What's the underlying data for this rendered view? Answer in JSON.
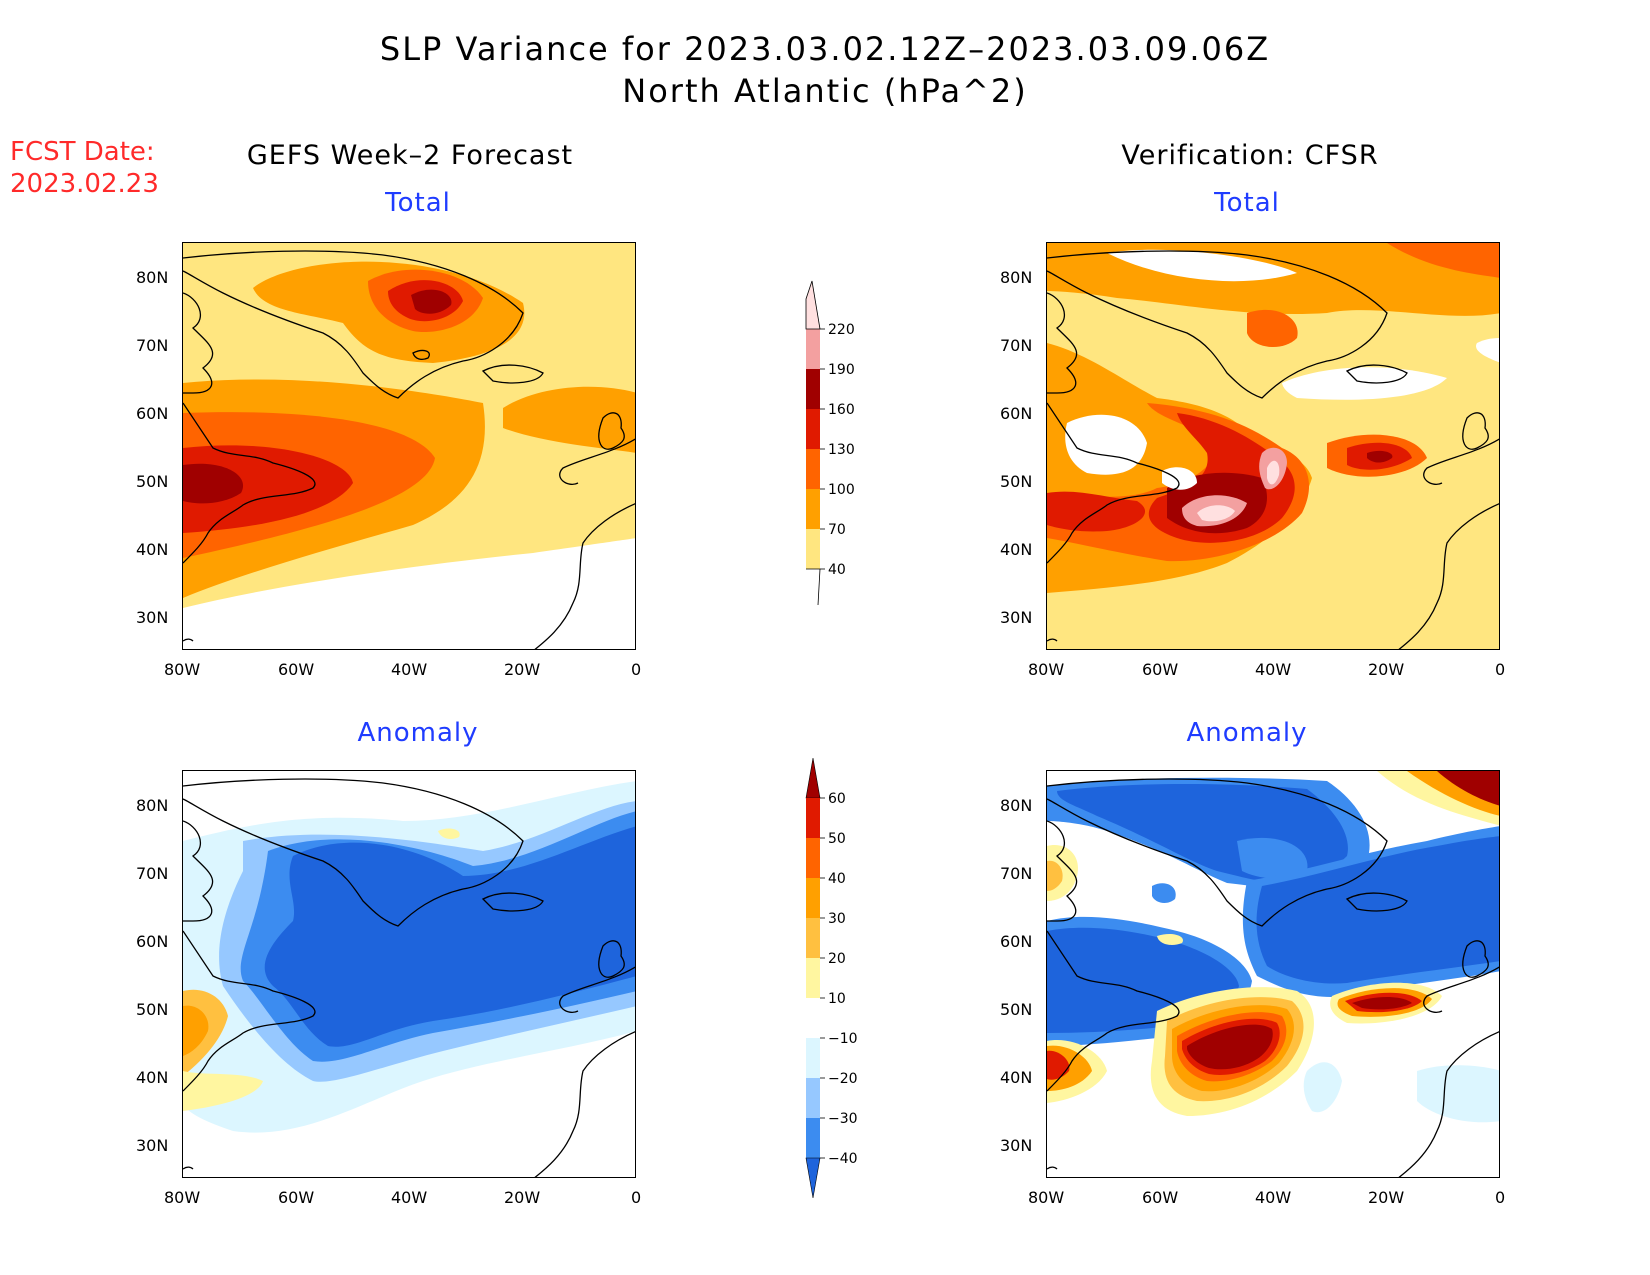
{
  "title": {
    "line1": "SLP Variance for 2023.03.02.12Z–2023.03.09.06Z",
    "line2": "North Atlantic (hPa^2)"
  },
  "fcst": {
    "line1": "FCST Date:",
    "line2": "2023.02.23"
  },
  "columns": {
    "left": "GEFS Week–2 Forecast",
    "right": "Verification: CFSR"
  },
  "subtitles": {
    "total": "Total",
    "anomaly": "Anomaly"
  },
  "axes": {
    "lat_labels": [
      "80N",
      "70N",
      "60N",
      "50N",
      "40N",
      "30N"
    ],
    "lon_labels": [
      "80W",
      "60W",
      "40W",
      "20W",
      "0"
    ]
  },
  "colorbars": {
    "total": {
      "levels": [
        "40",
        "70",
        "100",
        "130",
        "160",
        "190",
        "220"
      ],
      "colors": [
        "#ffe680",
        "#ffa000",
        "#ff6400",
        "#e01a00",
        "#a00000",
        "#f3a0a0",
        "#ffe0e0"
      ]
    },
    "anomaly": {
      "levels": [
        "60",
        "50",
        "40",
        "30",
        "20",
        "10",
        "−10",
        "−20",
        "−30",
        "−40"
      ],
      "colors": [
        "#a00000",
        "#e01a00",
        "#ff6400",
        "#ffa000",
        "#ffc040",
        "#fff6a0",
        "#ffffff",
        "#dcf6ff",
        "#96c8ff",
        "#3c8cf0",
        "#1e64dc"
      ]
    }
  },
  "palette": {
    "total": {
      "low": "#ffffff",
      "t40": "#ffe680",
      "t70": "#ffa000",
      "t100": "#ff6400",
      "t130": "#e01a00",
      "t160": "#a00000",
      "t190": "#f3a0a0",
      "t220": "#ffe0e0"
    },
    "anomaly": {
      "a60": "#a00000",
      "a50": "#e01a00",
      "a40": "#ff6400",
      "a30": "#ffa000",
      "a20": "#ffc040",
      "a10": "#fff6a0",
      "zero": "#ffffff",
      "m10": "#dcf6ff",
      "m20": "#96c8ff",
      "m30": "#3c8cf0",
      "m40": "#1e64dc"
    }
  }
}
